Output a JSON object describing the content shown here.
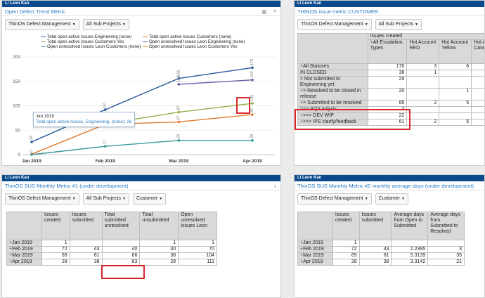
{
  "gadget1": {
    "header": "Li Leon Kan",
    "title": "Open Defect Trend Metric",
    "filters": [
      "ThinOS Defect Management",
      "All Sub Projects"
    ],
    "tooltip": {
      "title": "Jan 2019",
      "text": "Total open active Issues, Engineering, (none): 26"
    }
  },
  "chart_data": {
    "type": "line",
    "categories": [
      "Jan 2019",
      "Feb 2019",
      "Mar 2019",
      "Apr 2019"
    ],
    "ylim": [
      0,
      200
    ],
    "yticks": [
      0,
      50,
      100,
      150,
      200
    ],
    "legend_position": "top",
    "series": [
      {
        "name": "Total open active Issues Engineering (none)",
        "color": "#2c5b9e",
        "values": [
          26,
          92,
          156,
          178
        ],
        "labels": [
          "26",
          "92",
          "156",
          "178"
        ]
      },
      {
        "name": "Total open active Issues Customers (none)",
        "color": "#e07b2e",
        "values": [
          1,
          62,
          67,
          82
        ],
        "labels": [
          "",
          "",
          "67",
          "82"
        ]
      },
      {
        "name": "Total open active Issues Customers Yes",
        "color": "#8fb04a",
        "values": [
          null,
          63,
          87,
          105
        ],
        "labels": [
          "",
          "",
          "87",
          "105"
        ]
      },
      {
        "name": "Open unresolved Issues Leon Engineering (none)",
        "color": "#6a5aa8",
        "values": [
          null,
          null,
          144,
          153
        ],
        "labels": [
          "",
          "",
          "144",
          "153"
        ]
      },
      {
        "name": "Open unresolved Issues Leon Customers (none)",
        "color": "#3a9a9a",
        "values": [
          0,
          17,
          29,
          29
        ],
        "labels": [
          "0",
          "17",
          "29",
          "29"
        ]
      },
      {
        "name": "Open unresolved Issues Leon Customers Yes",
        "color": "#f08a2a",
        "values": [
          null,
          null,
          null,
          null
        ],
        "labels": [
          "",
          "",
          "",
          ""
        ]
      }
    ]
  },
  "gadget2": {
    "header": "Li Leon Kan",
    "title": "THINOS issue metric CUSTOMER",
    "filters": [
      "ThinOS Defect Management",
      "All Sub Projects"
    ],
    "group_header": "Issues created",
    "columns": [
      "All Escalation Types",
      "Hot Account RED",
      "Hot Account Yellow",
      "Hot Acc Cand"
    ],
    "rows": [
      {
        "label": "All Statuses",
        "prefix": "+",
        "values": [
          "170",
          "3",
          "6",
          ""
        ]
      },
      {
        "label": "IN CLOSED",
        "prefix": "",
        "values": [
          "36",
          "1",
          "",
          ""
        ]
      },
      {
        "label": "> Not submitted to Engineering yet",
        "prefix": "",
        "values": [
          "29",
          "",
          "",
          ""
        ]
      },
      {
        "label": "> Resolved to be closed in release",
        "prefix": "+",
        "values": [
          "20",
          "",
          "1",
          ""
        ]
      },
      {
        "label": "> Submitted to be resolved",
        "prefix": "+",
        "values": [
          "85",
          "2",
          "5",
          ""
        ]
      },
      {
        "label": ">>> SQA anlysis",
        "prefix": "",
        "values": [
          "2",
          "",
          "",
          ""
        ]
      },
      {
        "label": ">>> DEV WIP",
        "prefix": "+",
        "values": [
          "22",
          "",
          "",
          ""
        ]
      },
      {
        "label": ">>> IPS clarify/feedback",
        "prefix": "+",
        "values": [
          "61",
          "2",
          "5",
          ""
        ]
      }
    ]
  },
  "gadget3": {
    "header": "Li Leon Kan",
    "title": "ThinOS SUS Monthly Metric #1 (under development)",
    "filters": [
      "ThinOS Defect Management",
      "All Sub Projects",
      "Customer"
    ],
    "columns": [
      "Issues created",
      "Issues submitted",
      "Total submitted unresolved",
      "Total unsubmitted",
      "Open unresolved Issues Leon"
    ],
    "rows": [
      {
        "label": "Jan 2019",
        "values": [
          "1",
          "",
          "",
          "1",
          "1"
        ]
      },
      {
        "label": "Feb 2019",
        "values": [
          "72",
          "43",
          "40",
          "30",
          "70"
        ]
      },
      {
        "label": "Mar 2019",
        "values": [
          "69",
          "61",
          "66",
          "38",
          "104"
        ]
      },
      {
        "label": "Apr 2019",
        "values": [
          "28",
          "38",
          "83",
          "28",
          "111"
        ]
      }
    ]
  },
  "gadget4": {
    "header": "Li Leon Kan",
    "title": "ThinOS SUS Monthly Metric #2 monthly average days (under development)",
    "filters": [
      "ThinOS Defect Management",
      "Customer"
    ],
    "columns": [
      "Issues created",
      "Issues submitted",
      "Average days from Open to Submitted",
      "Average days from Submitted to Resolved"
    ],
    "rows": [
      {
        "label": "Jan 2019",
        "values": [
          "1",
          "",
          "",
          ""
        ]
      },
      {
        "label": "Feb 2019",
        "values": [
          "72",
          "43",
          "2.2395",
          "3"
        ]
      },
      {
        "label": "Mar 2019",
        "values": [
          "69",
          "61",
          "5.3139",
          "35"
        ]
      },
      {
        "label": "Apr 2019",
        "values": [
          "28",
          "38",
          "3.3142",
          "21"
        ]
      }
    ]
  }
}
